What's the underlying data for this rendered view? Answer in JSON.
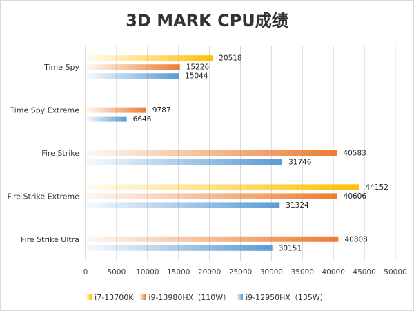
{
  "chart_data": {
    "type": "bar",
    "orientation": "horizontal",
    "title": "3D MARK CPU成绩",
    "categories": [
      "Time Spy",
      "Time Spy Extreme",
      "Fire Strike",
      "Fire Strike Extreme",
      "Fire Strike Ultra"
    ],
    "series": [
      {
        "name": "i7-13700K",
        "color": "#FFC000",
        "values": [
          20518,
          null,
          null,
          44152,
          null
        ]
      },
      {
        "name": "i9-13980HX（110W）",
        "color": "#ED7D31",
        "values": [
          15226,
          9787,
          40583,
          40606,
          40808
        ]
      },
      {
        "name": "i9-12950HX（135W）",
        "color": "#5B9BD5",
        "values": [
          15044,
          6646,
          31746,
          31324,
          30151
        ]
      }
    ],
    "xlim": [
      0,
      50000
    ],
    "xticks": [
      0,
      5000,
      10000,
      15000,
      20000,
      25000,
      30000,
      35000,
      40000,
      45000,
      50000
    ],
    "grid": true,
    "legend_position": "bottom"
  }
}
